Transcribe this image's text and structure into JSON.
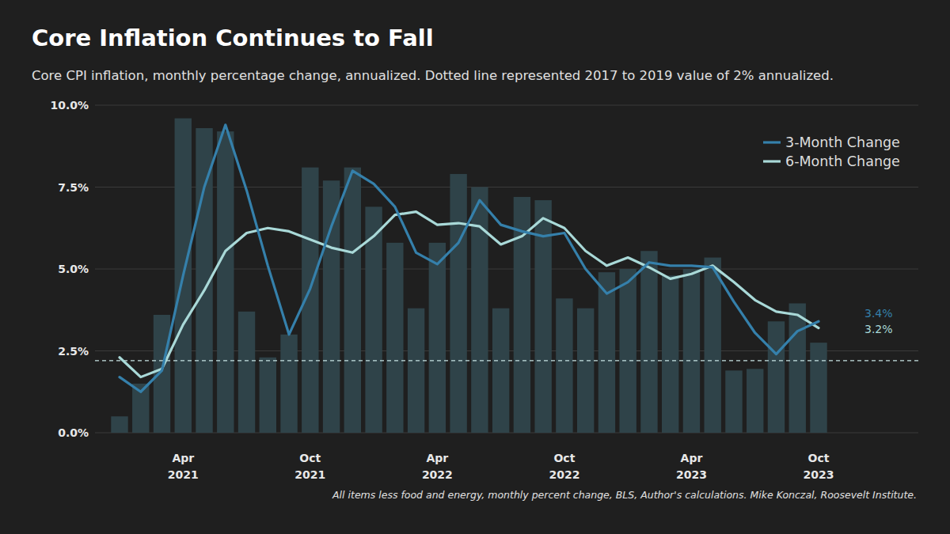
{
  "chart_data": {
    "type": "bar",
    "title": "Core Inflation Continues to Fall",
    "subtitle": "Core CPI inflation, monthly percentage change, annualized. Dotted line represented 2017 to 2019 value of 2% annualized.",
    "source": "All items less food and energy, monthly percent change, BLS, Author's calculations. Mike Konczal, Roosevelt Institute.",
    "categories": [
      null,
      null,
      null,
      "Apr 2021",
      null,
      null,
      null,
      null,
      null,
      "Oct 2021",
      null,
      null,
      null,
      null,
      null,
      "Apr 2022",
      null,
      null,
      null,
      null,
      null,
      "Oct 2022",
      null,
      null,
      null,
      null,
      null,
      "Apr 2023",
      null,
      null,
      null,
      null,
      null,
      "Oct 2023"
    ],
    "series": [
      {
        "type": "bar",
        "color": "#2f4349",
        "values": [
          0.5,
          1.5,
          3.6,
          9.6,
          9.3,
          9.2,
          3.7,
          2.3,
          3.0,
          8.1,
          7.7,
          8.1,
          6.9,
          5.8,
          3.8,
          5.8,
          7.9,
          7.5,
          3.8,
          7.2,
          7.1,
          4.1,
          3.8,
          4.9,
          5.0,
          5.55,
          4.8,
          5.0,
          5.35,
          1.9,
          1.95,
          3.4,
          3.95,
          2.75
        ]
      },
      {
        "name": "3-Month Change",
        "type": "line",
        "color": "#3580ab",
        "values": [
          1.7,
          1.25,
          1.9,
          4.8,
          7.5,
          9.4,
          7.4,
          5.1,
          3.0,
          4.4,
          6.3,
          8.0,
          7.6,
          6.9,
          5.5,
          5.15,
          5.8,
          7.1,
          6.35,
          6.15,
          6.0,
          6.1,
          5.0,
          4.25,
          4.6,
          5.2,
          5.1,
          5.1,
          5.05,
          4.0,
          3.05,
          2.4,
          3.1,
          3.4
        ],
        "value_labels": [
          null,
          null,
          null,
          null,
          null,
          null,
          null,
          null,
          null,
          null,
          null,
          null,
          null,
          null,
          null,
          null,
          null,
          null,
          null,
          null,
          null,
          null,
          null,
          null,
          null,
          null,
          null,
          null,
          null,
          null,
          null,
          null,
          null,
          "3.4%"
        ]
      },
      {
        "name": "6-Month Change",
        "type": "line",
        "color": "#a9d9d8",
        "values": [
          2.3,
          1.7,
          1.95,
          3.3,
          4.35,
          5.55,
          6.1,
          6.25,
          6.15,
          5.9,
          5.65,
          5.5,
          6.0,
          6.65,
          6.75,
          6.35,
          6.4,
          6.3,
          5.75,
          6.0,
          6.55,
          6.25,
          5.55,
          5.1,
          5.35,
          5.05,
          4.7,
          4.85,
          5.1,
          4.6,
          4.05,
          3.7,
          3.6,
          3.2
        ],
        "value_labels": [
          null,
          null,
          null,
          null,
          null,
          null,
          null,
          null,
          null,
          null,
          null,
          null,
          null,
          null,
          null,
          null,
          null,
          null,
          null,
          null,
          null,
          null,
          null,
          null,
          null,
          null,
          null,
          null,
          null,
          null,
          null,
          null,
          null,
          "3.2%"
        ]
      }
    ],
    "reference_line": 2.2,
    "ylim": [
      0,
      10
    ],
    "yticks": [
      {
        "value": 0,
        "label": "0.0%"
      },
      {
        "value": 2.5,
        "label": "2.5%"
      },
      {
        "value": 5,
        "label": "5.0%"
      },
      {
        "value": 7.5,
        "label": "7.5%"
      },
      {
        "value": 10,
        "label": "10.0%"
      }
    ],
    "grid": true,
    "legend": "top-right"
  }
}
